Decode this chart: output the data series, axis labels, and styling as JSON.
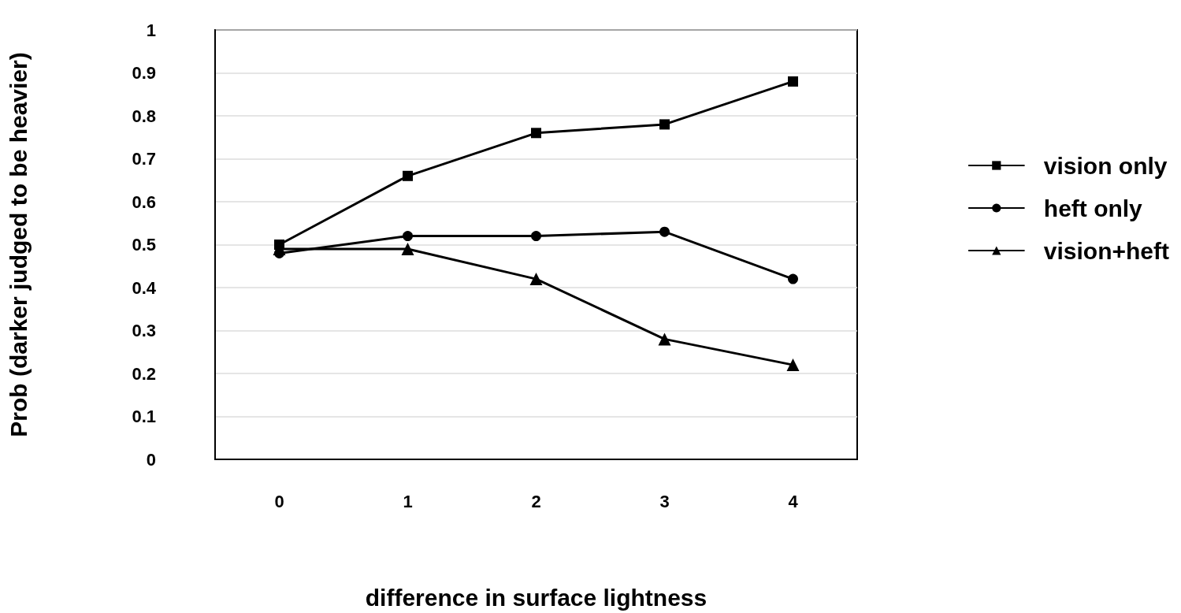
{
  "chart_data": {
    "type": "line",
    "xlabel": "difference in surface lightness",
    "ylabel": "Prob (darker judged to be heavier)",
    "categories": [
      "0",
      "1",
      "2",
      "3",
      "4"
    ],
    "series": [
      {
        "name": "vision only",
        "color": "#000000",
        "marker": "square",
        "values": [
          0.5,
          0.66,
          0.76,
          0.78,
          0.88
        ]
      },
      {
        "name": "heft only",
        "color": "#000000",
        "marker": "circle",
        "values": [
          0.48,
          0.52,
          0.52,
          0.53,
          0.42
        ]
      },
      {
        "name": "vision+heft",
        "color": "#000000",
        "marker": "triangle",
        "values": [
          0.49,
          0.49,
          0.42,
          0.28,
          0.22
        ]
      }
    ],
    "ylim": [
      0,
      1
    ],
    "yticks": [
      0,
      0.1,
      0.2,
      0.3,
      0.4,
      0.5,
      0.6,
      0.7,
      0.8,
      0.9,
      1
    ],
    "grid": "y",
    "legend": "right",
    "line_style": "solid"
  }
}
